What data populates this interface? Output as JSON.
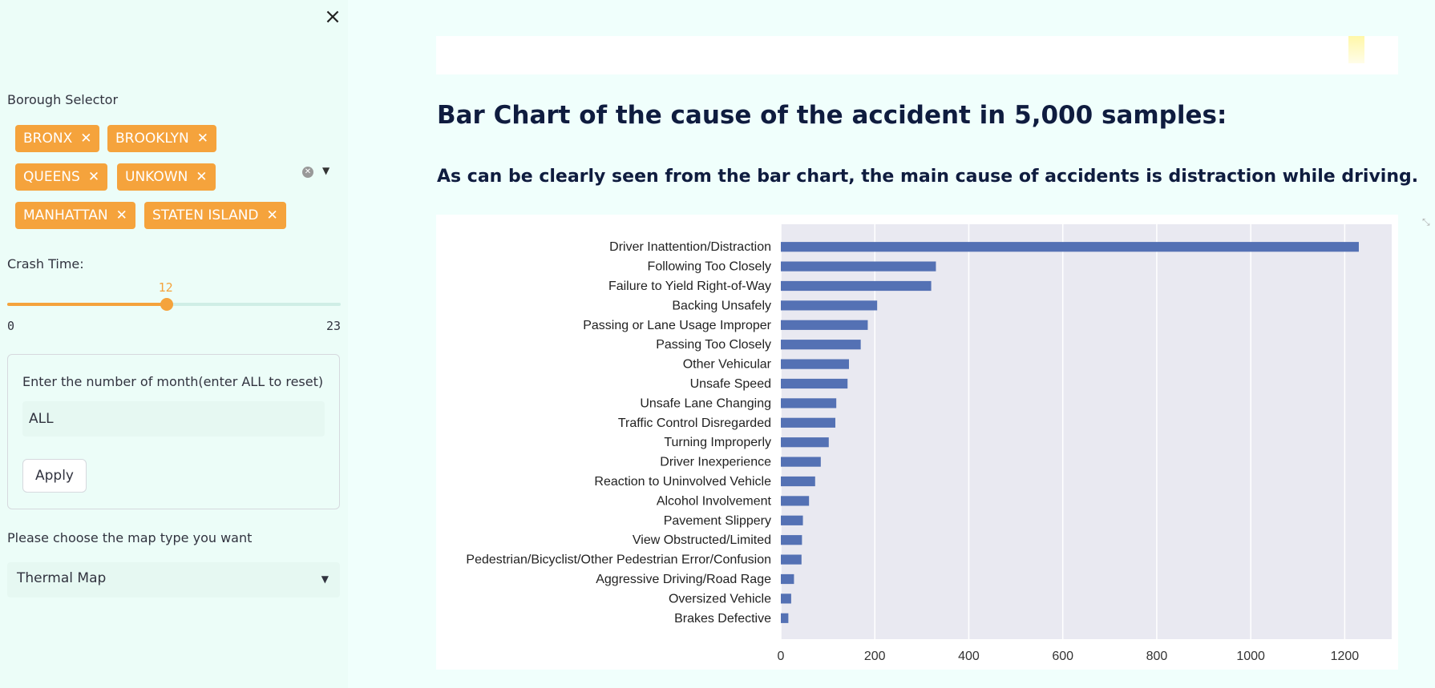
{
  "sidebar": {
    "close_label": "×",
    "borough": {
      "label": "Borough Selector",
      "tags": [
        "BRONX",
        "BROOKLYN",
        "QUEENS",
        "UNKOWN",
        "MANHATTAN",
        "STATEN ISLAND"
      ]
    },
    "crash_time": {
      "label": "Crash Time:",
      "value": 12,
      "min": 0,
      "max": 23
    },
    "month_form": {
      "label": "Enter the number of month(enter ALL to reset)",
      "value": "ALL",
      "apply_label": "Apply"
    },
    "map_type": {
      "label": "Please choose the map type you want",
      "selected": "Thermal Map"
    }
  },
  "main": {
    "title": "Bar Chart of the cause of the accident in 5,000 samples:",
    "subtitle": "As can be clearly seen from the bar chart, the main cause of accidents is distraction while driving."
  },
  "colors": {
    "accent": "#f5a33c",
    "bar": "#5471b4",
    "plot_bg": "#e9e9f1"
  },
  "chart_data": {
    "type": "bar",
    "orientation": "horizontal",
    "categories": [
      "Driver Inattention/Distraction",
      "Following Too Closely",
      "Failure to Yield Right-of-Way",
      "Backing Unsafely",
      "Passing or Lane Usage Improper",
      "Passing Too Closely",
      "Other Vehicular",
      "Unsafe Speed",
      "Unsafe Lane Changing",
      "Traffic Control Disregarded",
      "Turning Improperly",
      "Driver Inexperience",
      "Reaction to Uninvolved Vehicle",
      "Alcohol Involvement",
      "Pavement Slippery",
      "View Obstructed/Limited",
      "Pedestrian/Bicyclist/Other Pedestrian Error/Confusion",
      "Aggressive Driving/Road Rage",
      "Oversized Vehicle",
      "Brakes Defective"
    ],
    "values": [
      1230,
      330,
      320,
      205,
      185,
      170,
      145,
      142,
      118,
      116,
      102,
      85,
      73,
      60,
      47,
      45,
      44,
      28,
      22,
      16
    ],
    "xlim": [
      0,
      1300
    ],
    "xticks": [
      0,
      200,
      400,
      600,
      800,
      1000,
      1200
    ],
    "grid": true
  }
}
